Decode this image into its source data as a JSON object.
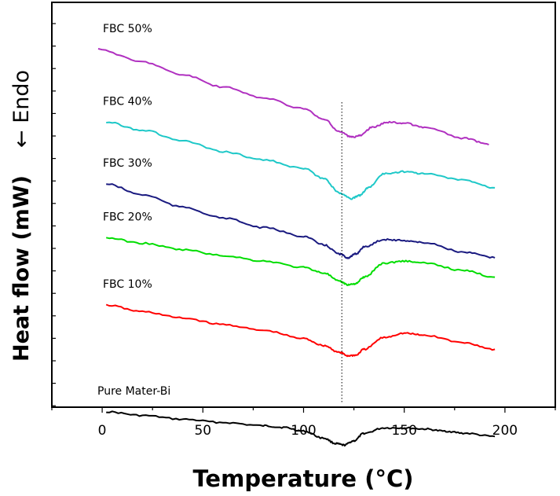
{
  "chart_data": {
    "type": "line",
    "title": "",
    "xlabel": "Temperature (°C)",
    "ylabel": "Heat flow (mW)",
    "ylabel_direction": "← Endo",
    "xlim": [
      -25,
      225
    ],
    "xticks": [
      0,
      50,
      100,
      150,
      200
    ],
    "xtick_labels": [
      "0",
      "50",
      "100",
      "150",
      "200"
    ],
    "y_units": "arbitrary (stacked offsets)",
    "reference_line_x": 119,
    "series": [
      {
        "name": "Pure Mater-Bi",
        "color": "#000000",
        "x": [
          2,
          20,
          40,
          60,
          80,
          90,
          100,
          110,
          116,
          120,
          125,
          130,
          140,
          150,
          160,
          170,
          180,
          195
        ],
        "y": [
          0.82,
          0.75,
          0.68,
          0.62,
          0.56,
          0.53,
          0.46,
          0.33,
          0.23,
          0.2,
          0.28,
          0.42,
          0.52,
          0.52,
          0.5,
          0.46,
          0.42,
          0.36
        ]
      },
      {
        "name": "FBC 10%",
        "color": "#ff0000",
        "x": [
          2,
          20,
          40,
          60,
          80,
          100,
          110,
          118,
          122,
          126,
          130,
          140,
          150,
          160,
          180,
          195
        ],
        "y": [
          2.8,
          2.68,
          2.56,
          2.44,
          2.33,
          2.18,
          2.05,
          1.92,
          1.86,
          1.87,
          1.98,
          2.2,
          2.28,
          2.24,
          2.1,
          1.98
        ]
      },
      {
        "name": "FBC 20%",
        "color": "#00dd00",
        "x": [
          2,
          20,
          40,
          60,
          80,
          100,
          110,
          118,
          122,
          126,
          130,
          140,
          150,
          160,
          180,
          195
        ],
        "y": [
          4.05,
          3.95,
          3.83,
          3.72,
          3.62,
          3.5,
          3.4,
          3.24,
          3.18,
          3.2,
          3.32,
          3.58,
          3.62,
          3.58,
          3.44,
          3.32
        ]
      },
      {
        "name": "FBC 30%",
        "color": "#1a1a80",
        "x": [
          2,
          20,
          40,
          60,
          80,
          100,
          110,
          118,
          122,
          126,
          130,
          140,
          150,
          160,
          180,
          195
        ],
        "y": [
          5.05,
          4.85,
          4.62,
          4.42,
          4.24,
          4.08,
          3.92,
          3.75,
          3.68,
          3.75,
          3.88,
          4.02,
          4.0,
          3.96,
          3.78,
          3.68
        ]
      },
      {
        "name": "FBC 40%",
        "color": "#1ec8c8",
        "x": [
          2,
          20,
          40,
          60,
          80,
          100,
          110,
          118,
          124,
          128,
          132,
          140,
          150,
          160,
          180,
          195
        ],
        "y": [
          6.2,
          6.05,
          5.85,
          5.65,
          5.5,
          5.34,
          5.15,
          4.88,
          4.78,
          4.84,
          4.98,
          5.24,
          5.28,
          5.24,
          5.12,
          4.98
        ]
      },
      {
        "name": "FBC 50%",
        "color": "#b030c0",
        "x": [
          -2,
          20,
          40,
          60,
          80,
          100,
          110,
          118,
          124,
          128,
          134,
          142,
          150,
          160,
          180,
          192
        ],
        "y": [
          7.55,
          7.32,
          7.08,
          6.85,
          6.65,
          6.45,
          6.25,
          6.02,
          5.92,
          5.95,
          6.1,
          6.2,
          6.18,
          6.1,
          5.9,
          5.78
        ]
      }
    ]
  }
}
